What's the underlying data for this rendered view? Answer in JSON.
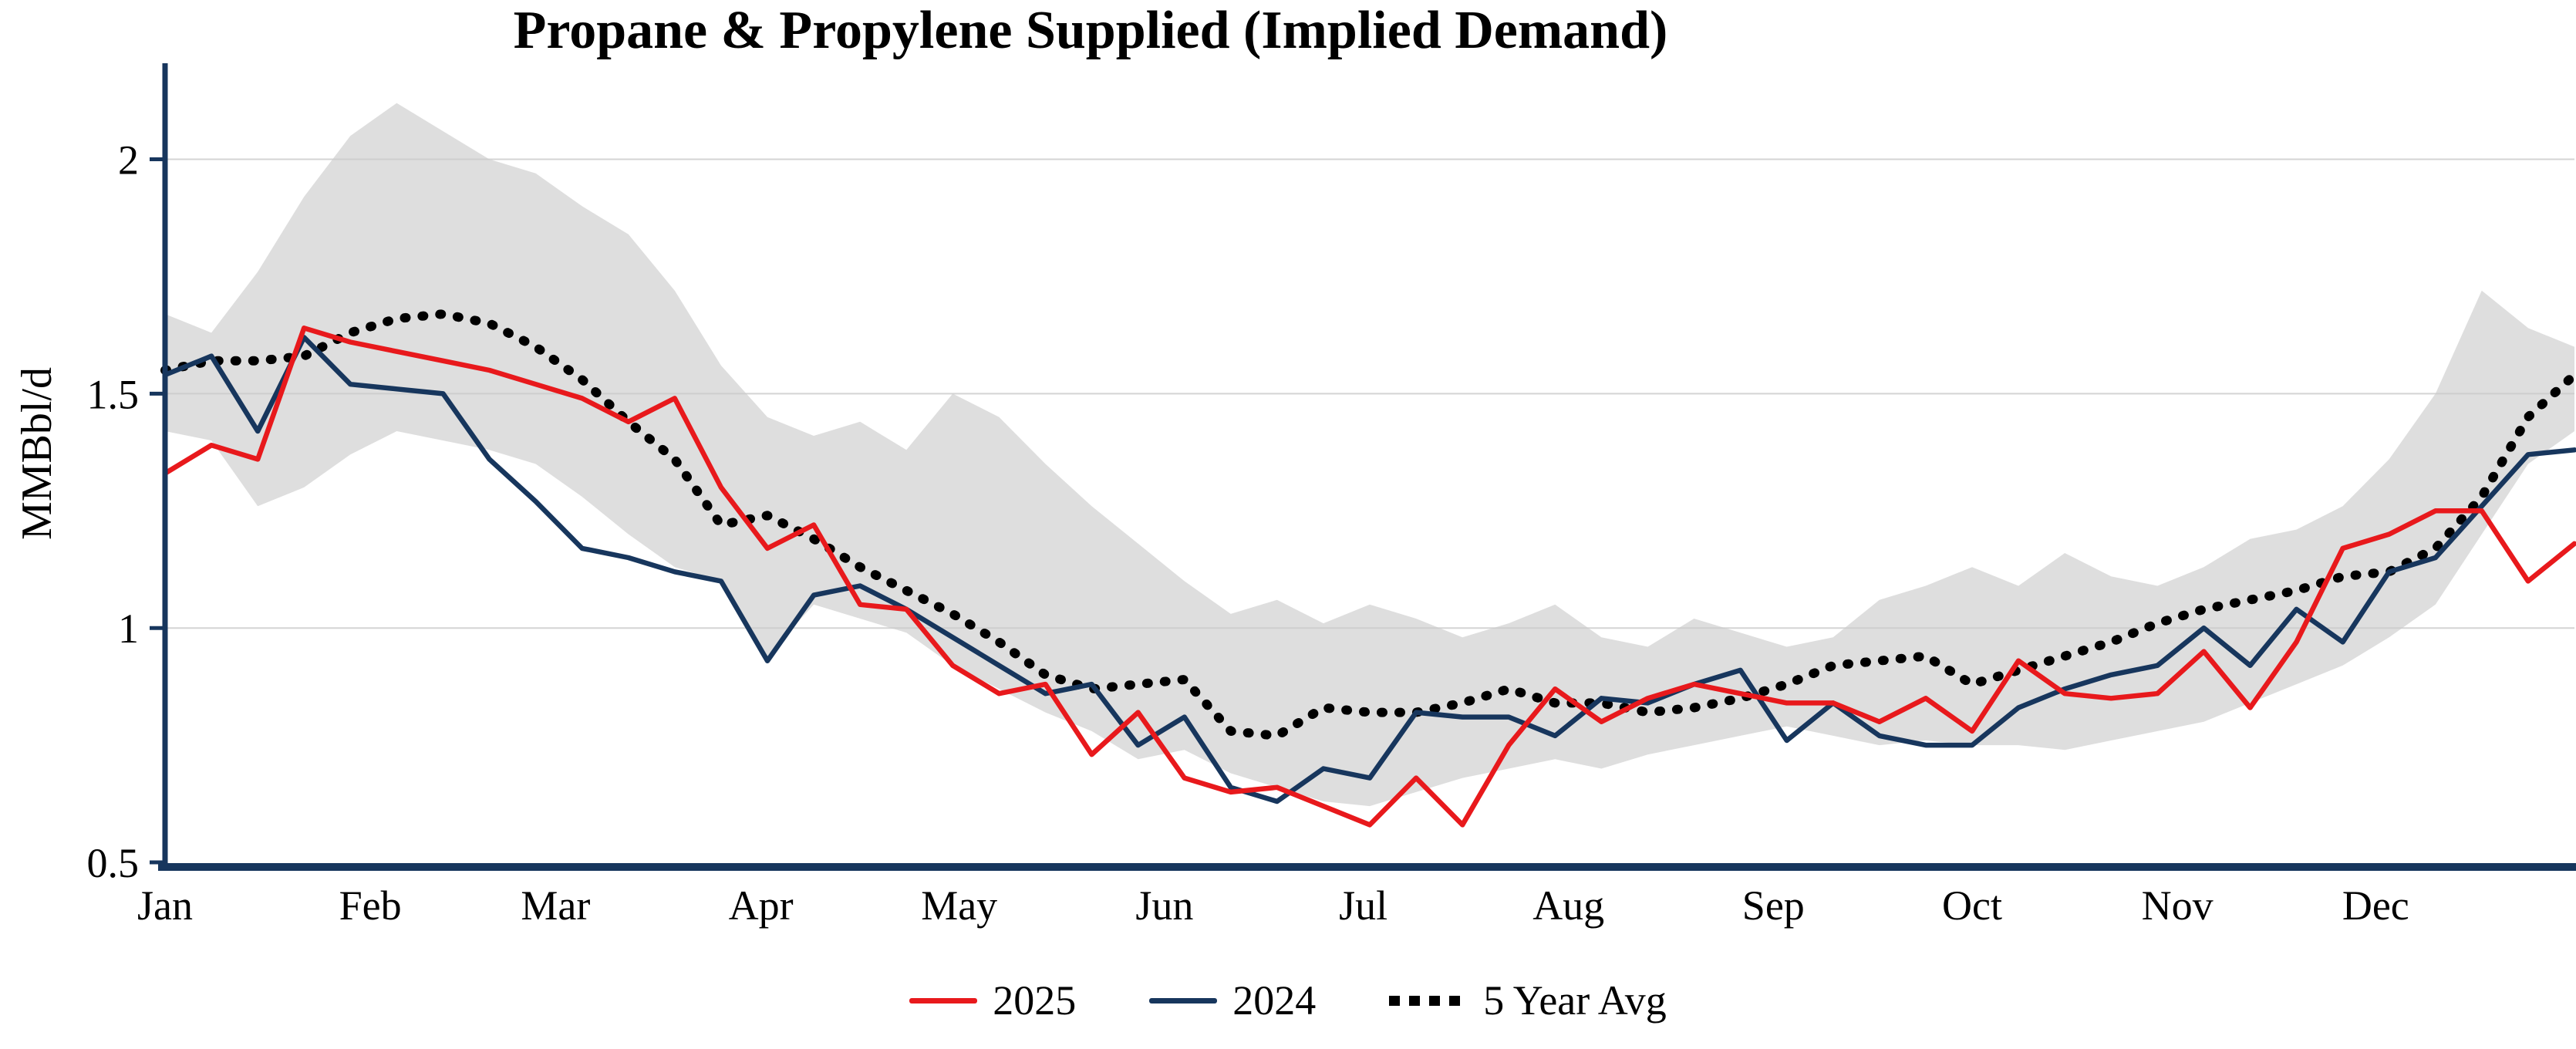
{
  "axis_color": "#17365d",
  "chart_data": {
    "type": "line",
    "title": "Propane & Propylene Supplied (Implied Demand)",
    "xlabel": "",
    "ylabel": "MMBbl/d",
    "ylim": [
      0.5,
      2.2
    ],
    "yticks": [
      0.5,
      1,
      1.5,
      2
    ],
    "gridlines": [
      1,
      1.5,
      2
    ],
    "grid": "horizontal",
    "legend_position": "bottom",
    "x_unit": "weekly points, Jan through Dec",
    "weeks": 53,
    "month_labels": [
      "Jan",
      "Feb",
      "Mar",
      "Apr",
      "May",
      "Jun",
      "Jul",
      "Aug",
      "Sep",
      "Oct",
      "Nov",
      "Dec"
    ],
    "month_week_positions": [
      0,
      4.43,
      8.43,
      12.86,
      17.14,
      21.57,
      25.86,
      30.29,
      34.71,
      39.0,
      43.43,
      47.71
    ],
    "series": [
      {
        "name": "2025",
        "color": "#e8191c",
        "style": "solid",
        "values": [
          1.33,
          1.39,
          1.36,
          1.64,
          1.61,
          1.59,
          1.57,
          1.55,
          1.52,
          1.49,
          1.44,
          1.49,
          1.3,
          1.17,
          1.22,
          1.05,
          1.04,
          0.92,
          0.86,
          0.88,
          0.73,
          0.82,
          0.68,
          0.65,
          0.66,
          0.62,
          0.58,
          0.68,
          0.58,
          0.75,
          0.87,
          0.8,
          0.85,
          0.88,
          0.86,
          0.84,
          0.84,
          0.8,
          0.85,
          0.78,
          0.93,
          0.86,
          0.85,
          0.86,
          0.95,
          0.83,
          0.97,
          1.17,
          1.2,
          1.25,
          1.25,
          1.1,
          1.18
        ]
      },
      {
        "name": "2024",
        "color": "#17365d",
        "style": "solid",
        "values": [
          1.54,
          1.58,
          1.42,
          1.62,
          1.52,
          1.51,
          1.5,
          1.36,
          1.27,
          1.17,
          1.15,
          1.12,
          1.1,
          0.93,
          1.07,
          1.09,
          1.04,
          0.98,
          0.92,
          0.86,
          0.88,
          0.75,
          0.81,
          0.66,
          0.63,
          0.7,
          0.68,
          0.82,
          0.81,
          0.81,
          0.77,
          0.85,
          0.84,
          0.88,
          0.91,
          0.76,
          0.84,
          0.77,
          0.75,
          0.75,
          0.83,
          0.87,
          0.9,
          0.92,
          1.0,
          0.92,
          1.04,
          0.97,
          1.12,
          1.15,
          1.26,
          1.37,
          1.38
        ]
      },
      {
        "name": "5 Year Avg",
        "color": "#000000",
        "style": "dotted",
        "values": [
          1.55,
          1.57,
          1.57,
          1.58,
          1.63,
          1.66,
          1.67,
          1.65,
          1.6,
          1.53,
          1.44,
          1.36,
          1.22,
          1.24,
          1.19,
          1.13,
          1.08,
          1.03,
          0.97,
          0.9,
          0.87,
          0.88,
          0.89,
          0.78,
          0.77,
          0.83,
          0.82,
          0.82,
          0.84,
          0.87,
          0.84,
          0.84,
          0.82,
          0.83,
          0.85,
          0.88,
          0.92,
          0.93,
          0.94,
          0.88,
          0.91,
          0.94,
          0.97,
          1.01,
          1.04,
          1.06,
          1.08,
          1.11,
          1.12,
          1.17,
          1.28,
          1.45,
          1.54
        ]
      }
    ],
    "band": {
      "name": "5-year range",
      "color": "#dcdcdc",
      "upper": [
        1.67,
        1.63,
        1.76,
        1.92,
        2.05,
        2.12,
        2.06,
        2.0,
        1.97,
        1.9,
        1.84,
        1.72,
        1.56,
        1.45,
        1.41,
        1.44,
        1.38,
        1.5,
        1.45,
        1.35,
        1.26,
        1.18,
        1.1,
        1.03,
        1.06,
        1.01,
        1.05,
        1.02,
        0.98,
        1.01,
        1.05,
        0.98,
        0.96,
        1.02,
        0.99,
        0.96,
        0.98,
        1.06,
        1.09,
        1.13,
        1.09,
        1.16,
        1.11,
        1.09,
        1.13,
        1.19,
        1.21,
        1.26,
        1.36,
        1.5,
        1.72,
        1.64,
        1.6
      ],
      "lower": [
        1.42,
        1.4,
        1.26,
        1.3,
        1.37,
        1.42,
        1.4,
        1.38,
        1.35,
        1.28,
        1.2,
        1.13,
        1.1,
        0.94,
        1.05,
        1.02,
        0.99,
        0.92,
        0.87,
        0.82,
        0.78,
        0.72,
        0.74,
        0.69,
        0.66,
        0.63,
        0.62,
        0.65,
        0.68,
        0.7,
        0.72,
        0.7,
        0.73,
        0.75,
        0.77,
        0.79,
        0.77,
        0.75,
        0.76,
        0.75,
        0.75,
        0.74,
        0.76,
        0.78,
        0.8,
        0.84,
        0.88,
        0.92,
        0.98,
        1.05,
        1.2,
        1.35,
        1.42
      ]
    }
  }
}
